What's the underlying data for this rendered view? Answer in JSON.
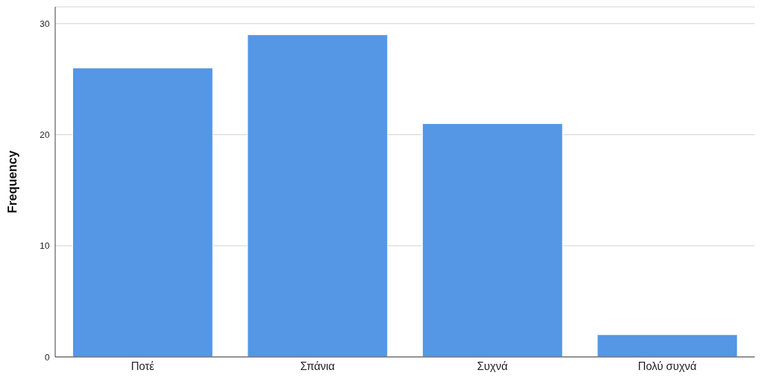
{
  "chart_data": {
    "type": "bar",
    "ylabel": "Frequency",
    "categories": [
      "Ποτέ",
      "Σπάνια",
      "Συχνά",
      "Πολύ συχνά"
    ],
    "values": [
      26,
      29,
      21,
      2
    ],
    "color": "#5596e5",
    "ylim": [
      0,
      31.5
    ],
    "yticks": [
      0,
      10,
      20,
      30
    ],
    "grid": "y"
  }
}
